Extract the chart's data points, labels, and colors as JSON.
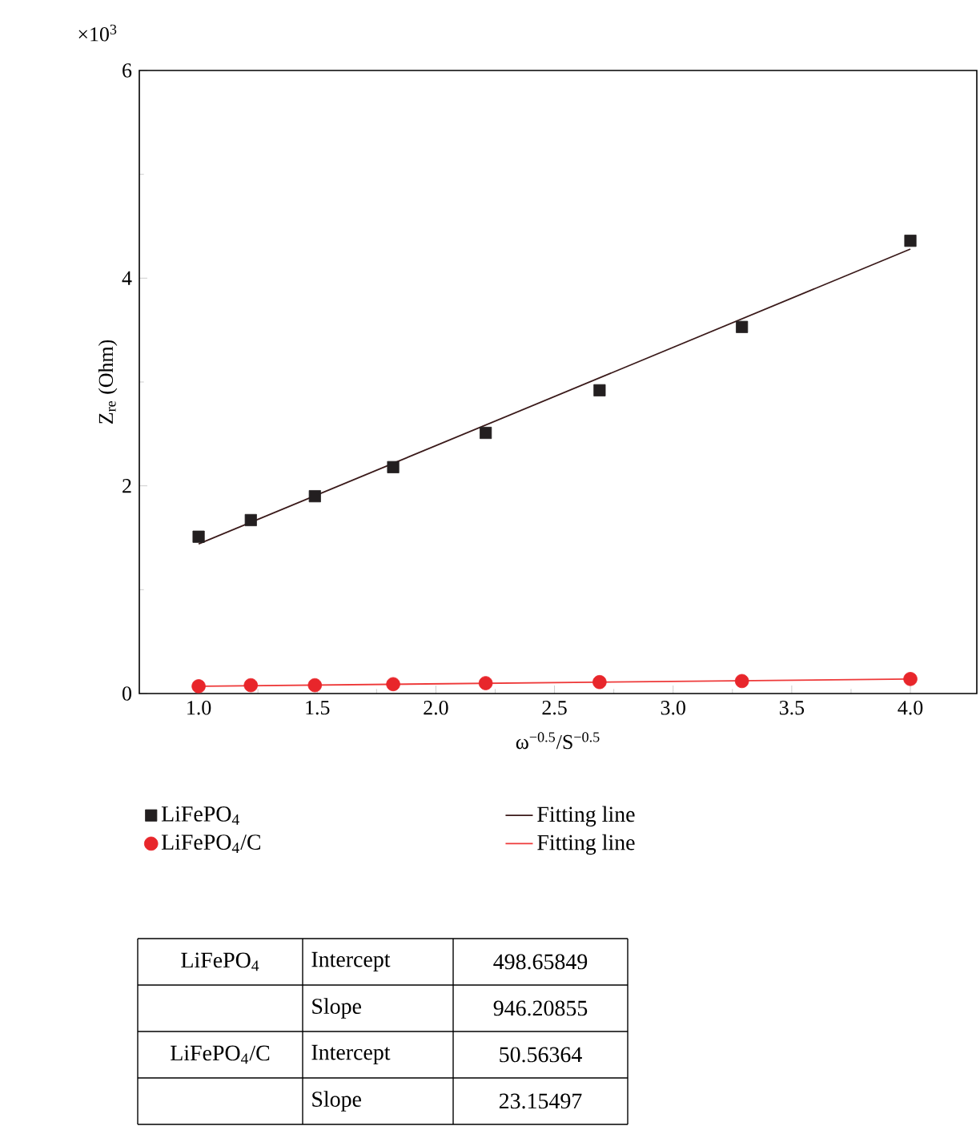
{
  "chart_data": {
    "type": "scatter",
    "xlabel": "ω$^{−0.5}$/S$^{−0.5}$",
    "ylabel": "Z$_{re}$ (Ohm)",
    "xlim": [
      0.75,
      4.28
    ],
    "xticks": [
      {
        "value": 1.0,
        "label": "1.0"
      },
      {
        "value": 1.5,
        "label": "1.5"
      },
      {
        "value": 2.0,
        "label": "2.0"
      },
      {
        "value": 2.5,
        "label": "2.5"
      },
      {
        "value": 3.0,
        "label": "3.0"
      },
      {
        "value": 3.5,
        "label": "3.5"
      },
      {
        "value": 4.0,
        "label": "4.0"
      }
    ],
    "ylim": [
      0,
      6
    ],
    "yticks": [
      0,
      2,
      4,
      6
    ],
    "series": [
      {
        "name": "LiFePO$_{4}$",
        "marker": "square",
        "color": "#231f20",
        "x": [
          1.0,
          1.22,
          1.49,
          1.82,
          2.21,
          2.69,
          3.29,
          4.0
        ],
        "values": [
          1.51,
          1.67,
          1.9,
          2.18,
          2.51,
          2.92,
          3.53,
          4.36
        ]
      },
      {
        "name": "Fitting line",
        "type": "line",
        "color": "#3a1a1a",
        "x": [
          1.0,
          4.0
        ],
        "values": [
          1.44,
          4.28
        ]
      },
      {
        "name": "LiFePO$_{4}$/C",
        "marker": "circle",
        "color": "#e8262b",
        "x": [
          1.0,
          1.22,
          1.49,
          1.82,
          2.21,
          2.69,
          3.29,
          4.0
        ],
        "values": [
          0.07,
          0.08,
          0.08,
          0.09,
          0.1,
          0.11,
          0.12,
          0.14
        ]
      },
      {
        "name": "Fitting line",
        "type": "line",
        "color": "#ee3a3a",
        "x": [
          1.0,
          4.0
        ],
        "values": [
          0.07,
          0.14
        ]
      }
    ],
    "legend": "bottom",
    "annotations": [
      "×10$^{3}$",
      "LiFePO$_{4}$",
      "Intercept",
      "498.65849",
      "Slope",
      "946.20855",
      "LiFePO$_{4}$/C",
      "Intercept",
      "50.56364",
      "Slope",
      "23.15497"
    ]
  }
}
